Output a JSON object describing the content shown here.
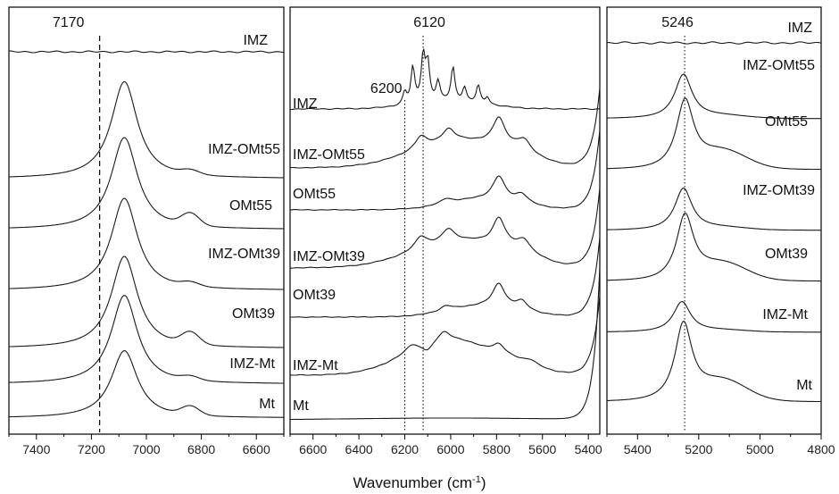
{
  "chart_data": [
    {
      "type": "line",
      "xlim": [
        7500,
        6500
      ],
      "xticks": [
        7400,
        7200,
        7000,
        6800,
        6600
      ],
      "series": [
        {
          "name": "IMZ",
          "shape": "flat"
        },
        {
          "name": "IMZ-OMt55",
          "shape": "peak",
          "peak_x": 7080
        },
        {
          "name": "OMt55",
          "shape": "peak",
          "peak_x": 7080
        },
        {
          "name": "IMZ-OMt39",
          "shape": "peak",
          "peak_x": 7080
        },
        {
          "name": "OMt39",
          "shape": "peak",
          "peak_x": 7080
        },
        {
          "name": "IMZ-Mt",
          "shape": "peak",
          "peak_x": 7080
        },
        {
          "name": "Mt",
          "shape": "peak",
          "peak_x": 7080
        }
      ],
      "reference_lines": [
        {
          "x": 7170,
          "label": "7170",
          "style": "dashed"
        }
      ]
    },
    {
      "type": "line",
      "xlim": [
        6700,
        5350
      ],
      "xticks": [
        6600,
        6400,
        6200,
        6000,
        5800,
        5600,
        5400
      ],
      "series": [
        {
          "name": "IMZ",
          "shape": "multiplet",
          "peaks_x": [
            6200,
            6160,
            6120,
            6100,
            5990,
            5940,
            5880
          ]
        },
        {
          "name": "IMZ-OMt55",
          "shape": "bands",
          "peaks_x": [
            6130,
            6010,
            5790,
            5680
          ]
        },
        {
          "name": "OMt55",
          "shape": "bands",
          "peaks_x": [
            6020,
            5790,
            5690
          ]
        },
        {
          "name": "IMZ-OMt39",
          "shape": "bands",
          "peaks_x": [
            6130,
            6010,
            5790,
            5680
          ]
        },
        {
          "name": "OMt39",
          "shape": "bands",
          "peaks_x": [
            6020,
            5790,
            5690
          ]
        },
        {
          "name": "IMZ-Mt",
          "shape": "bands",
          "peaks_x": [
            6170,
            6030,
            5790,
            5650
          ]
        },
        {
          "name": "Mt",
          "shape": "flat"
        }
      ],
      "reference_lines": [
        {
          "x": 6200,
          "label": "6200",
          "style": "dotted"
        },
        {
          "x": 6120,
          "label": "6120",
          "style": "dotted"
        }
      ]
    },
    {
      "type": "line",
      "xlim": [
        5500,
        4800
      ],
      "xticks": [
        5400,
        5200,
        5000,
        4800
      ],
      "series": [
        {
          "name": "IMZ",
          "shape": "flat"
        },
        {
          "name": "IMZ-OMt55",
          "shape": "peak",
          "peak_x": 5250
        },
        {
          "name": "OMt55",
          "shape": "peak",
          "peak_x": 5245
        },
        {
          "name": "IMZ-OMt39",
          "shape": "peak",
          "peak_x": 5250
        },
        {
          "name": "OMt39",
          "shape": "peak",
          "peak_x": 5245
        },
        {
          "name": "IMZ-Mt",
          "shape": "peak",
          "peak_x": 5255
        },
        {
          "name": "Mt",
          "shape": "peak",
          "peak_x": 5250
        }
      ],
      "reference_lines": [
        {
          "x": 5246,
          "label": "5246",
          "style": "dotted"
        }
      ]
    }
  ],
  "xlabel_main": "Wavenumber (cm",
  "xlabel_sup": "-1",
  "xlabel_end": ")"
}
